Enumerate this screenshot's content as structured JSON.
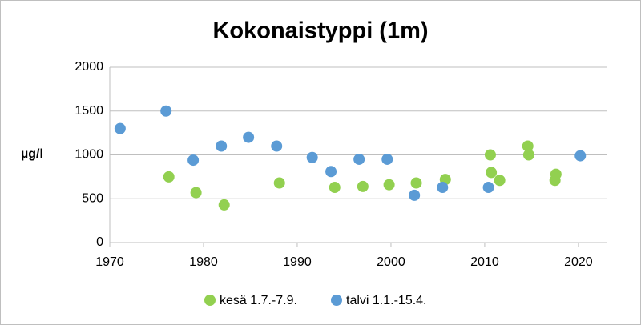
{
  "chart_data": {
    "type": "scatter",
    "title": "Kokonaistyppi (1m)",
    "y_label": "µg/l",
    "xlim": [
      1970,
      2023
    ],
    "xticks": [
      1970,
      1980,
      1990,
      2000,
      2010,
      2020
    ],
    "ylim": [
      0,
      2000
    ],
    "yticks": [
      0,
      500,
      1000,
      1500,
      2000
    ],
    "grid": true,
    "legend": "bottom",
    "series": [
      {
        "name": "kesä 1.7.-7.9.",
        "color": "#92d050",
        "x": [
          1976.3,
          1979.2,
          1982.2,
          1988.1,
          1994.0,
          1997.0,
          1999.8,
          2002.7,
          2005.8,
          2010.6,
          2010.7,
          2011.6,
          2014.6,
          2014.7,
          2017.6,
          2017.5
        ],
        "values": [
          750,
          570,
          430,
          680,
          630,
          640,
          660,
          680,
          720,
          1000,
          800,
          710,
          1100,
          1000,
          780,
          710
        ]
      },
      {
        "name": "talvi 1.1.-15.4.",
        "color": "#5b9bd5",
        "x": [
          1971.1,
          1976.0,
          1978.9,
          1981.9,
          1984.8,
          1987.8,
          1991.6,
          1993.6,
          1996.6,
          1999.6,
          2002.5,
          2005.5,
          2010.4,
          2020.2
        ],
        "values": [
          1300,
          1500,
          940,
          1100,
          1200,
          1100,
          970,
          810,
          950,
          950,
          540,
          630,
          630,
          990
        ]
      }
    ]
  }
}
